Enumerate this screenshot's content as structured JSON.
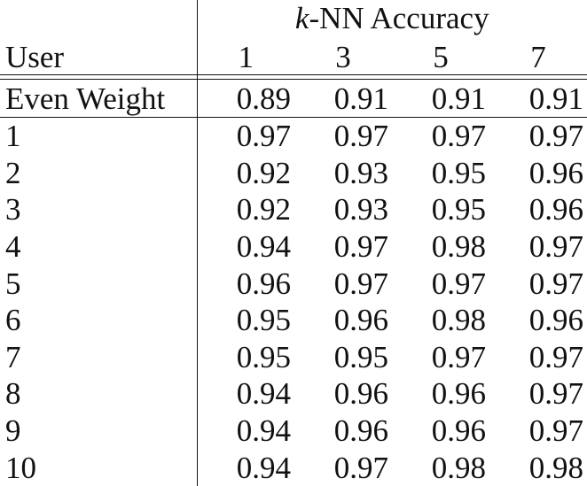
{
  "table": {
    "group_header_prefix": "k",
    "group_header_suffix": "-NN Accuracy",
    "user_header": "User",
    "k_values": [
      "1",
      "3",
      "5",
      "7"
    ],
    "even_weight": {
      "label": "Even Weight",
      "values": [
        "0.89",
        "0.91",
        "0.91",
        "0.91"
      ]
    },
    "rows": [
      {
        "user": "1",
        "values": [
          "0.97",
          "0.97",
          "0.97",
          "0.97"
        ]
      },
      {
        "user": "2",
        "values": [
          "0.92",
          "0.93",
          "0.95",
          "0.96"
        ]
      },
      {
        "user": "3",
        "values": [
          "0.92",
          "0.93",
          "0.95",
          "0.96"
        ]
      },
      {
        "user": "4",
        "values": [
          "0.94",
          "0.97",
          "0.98",
          "0.97"
        ]
      },
      {
        "user": "5",
        "values": [
          "0.96",
          "0.97",
          "0.97",
          "0.97"
        ]
      },
      {
        "user": "6",
        "values": [
          "0.95",
          "0.96",
          "0.98",
          "0.96"
        ]
      },
      {
        "user": "7",
        "values": [
          "0.95",
          "0.95",
          "0.97",
          "0.97"
        ]
      },
      {
        "user": "8",
        "values": [
          "0.94",
          "0.96",
          "0.96",
          "0.97"
        ]
      },
      {
        "user": "9",
        "values": [
          "0.94",
          "0.96",
          "0.96",
          "0.97"
        ]
      },
      {
        "user": "10",
        "values": [
          "0.94",
          "0.97",
          "0.98",
          "0.98"
        ]
      }
    ]
  }
}
